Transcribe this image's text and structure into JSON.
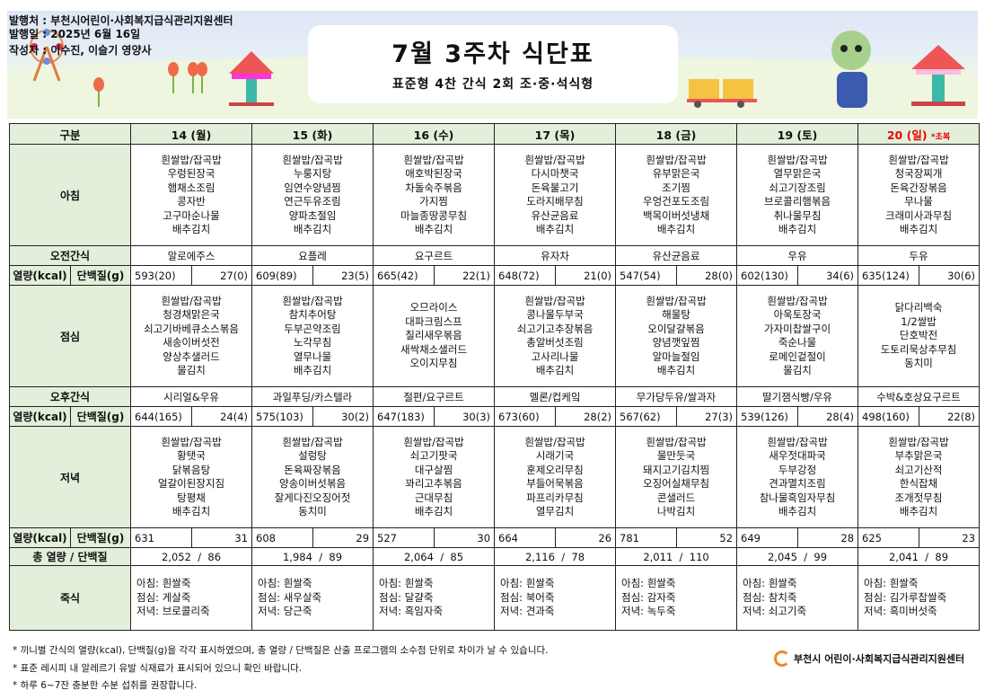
{
  "header": {
    "publisher": "발행처 : 부천시어린이·사회복지급식관리지원센터",
    "date": "발행일 : 2025년 6월 16일",
    "author": "작성자 : 이수진, 이슬기 영양사",
    "title": "7월 3주차 식단표",
    "subtitle": "표준형 4찬 간식 2회 조·중·석식형"
  },
  "labels": {
    "category": "구분",
    "breakfast": "아침",
    "am_snack": "오전간식",
    "kcal": "열량(kcal)",
    "protein": "단백질(g)",
    "lunch": "점심",
    "pm_snack": "오후간식",
    "dinner": "저녁",
    "total": "총 열량 / 단백질",
    "porridge": "죽식"
  },
  "days": [
    {
      "day": "14 (월)",
      "breakfast": [
        "흰쌀밥/잡곡밥",
        "우렁된장국",
        "햄채소조림",
        "콩자반",
        "고구마순나물",
        "배추김치"
      ],
      "am_snack": "알로에주스",
      "n1": [
        "593(20)",
        "27(0)"
      ],
      "lunch": [
        "흰쌀밥/잡곡밥",
        "청경채맑은국",
        "쇠고기바베큐소스볶음",
        "새송이버섯전",
        "양상추샐러드",
        "물김치"
      ],
      "pm_snack": "시리얼&우유",
      "n2": [
        "644(165)",
        "24(4)"
      ],
      "dinner": [
        "흰쌀밥/잡곡밥",
        "황탯국",
        "닭볶음탕",
        "얼갈이된장지짐",
        "탕평채",
        "배추김치"
      ],
      "n3": [
        "631",
        "31"
      ],
      "total": "2,052  /  86",
      "porridge": [
        "아침: 흰쌀죽",
        "점심: 게살죽",
        "저녁: 브로콜리죽"
      ]
    },
    {
      "day": "15 (화)",
      "breakfast": [
        "흰쌀밥/잡곡밥",
        "누룽지탕",
        "임연수양념찜",
        "연근두유조림",
        "양파초절임",
        "배추김치"
      ],
      "am_snack": "요플레",
      "n1": [
        "609(89)",
        "23(5)"
      ],
      "lunch": [
        "흰쌀밥/잡곡밥",
        "참치추어탕",
        "두부곤약조림",
        "노각무침",
        "열무나물",
        "배추김치"
      ],
      "pm_snack": "과일푸딩/카스텔라",
      "n2": [
        "575(103)",
        "30(2)"
      ],
      "dinner": [
        "흰쌀밥/잡곡밥",
        "설렁탕",
        "돈육짜장볶음",
        "양송이버섯볶음",
        "잘게다진오징어젓",
        "동치미"
      ],
      "n3": [
        "608",
        "29"
      ],
      "total": "1,984  /  89",
      "porridge": [
        "아침: 흰쌀죽",
        "점심: 새우살죽",
        "저녁: 당근죽"
      ]
    },
    {
      "day": "16 (수)",
      "breakfast": [
        "흰쌀밥/잡곡밥",
        "애호박된장국",
        "차돌숙주볶음",
        "가지찜",
        "마늘종땅콩무침",
        "배추김치"
      ],
      "am_snack": "요구르트",
      "n1": [
        "665(42)",
        "22(1)"
      ],
      "lunch": [
        "오므라이스",
        "대파크림스프",
        "칠리새우볶음",
        "새싹채소샐러드",
        "오이지무침"
      ],
      "pm_snack": "절편/요구르트",
      "n2": [
        "647(183)",
        "30(3)"
      ],
      "dinner": [
        "흰쌀밥/잡곡밥",
        "쇠고기팟국",
        "대구살찜",
        "꽈리고추볶음",
        "근대무침",
        "배추김치"
      ],
      "n3": [
        "527",
        "30"
      ],
      "total": "2,064  /  85",
      "porridge": [
        "아침: 흰쌀죽",
        "점심: 달걀죽",
        "저녁: 흑임자죽"
      ]
    },
    {
      "day": "17 (목)",
      "breakfast": [
        "흰쌀밥/잡곡밥",
        "다시마챗국",
        "돈육불고기",
        "도라지배무침",
        "유산균음료",
        "배추김치"
      ],
      "am_snack": "유자차",
      "n1": [
        "648(72)",
        "21(0)"
      ],
      "lunch": [
        "흰쌀밥/잡곡밥",
        "콩나물두부국",
        "쇠고기고추장볶음",
        "총알버섯조림",
        "고사리나물",
        "배추김치"
      ],
      "pm_snack": "멜론/컵케잌",
      "n2": [
        "673(60)",
        "28(2)"
      ],
      "dinner": [
        "흰쌀밥/잡곡밥",
        "시래기국",
        "훈제오리무침",
        "부들어묵볶음",
        "파프리카무침",
        "열무김치"
      ],
      "n3": [
        "664",
        "26"
      ],
      "total": "2,116  /  78",
      "porridge": [
        "아침: 흰쌀죽",
        "점심: 북어죽",
        "저녁: 견과죽"
      ]
    },
    {
      "day": "18 (금)",
      "breakfast": [
        "흰쌀밥/잡곡밥",
        "유부맑은국",
        "조기찜",
        "우엉건포도조림",
        "백목이버섯냉채",
        "배추김치"
      ],
      "am_snack": "유산균음료",
      "n1": [
        "547(54)",
        "28(0)"
      ],
      "lunch": [
        "흰쌀밥/잡곡밥",
        "해물탕",
        "오이달걀볶음",
        "양념깻잎찜",
        "알마늘절임",
        "배추김치"
      ],
      "pm_snack": "무가당두유/쌀과자",
      "n2": [
        "567(62)",
        "27(3)"
      ],
      "dinner": [
        "흰쌀밥/잡곡밥",
        "물만둣국",
        "돼지고기김치찜",
        "오징어실채무침",
        "콘샐러드",
        "나박김치"
      ],
      "n3": [
        "781",
        "52"
      ],
      "total": "2,011  /  110",
      "porridge": [
        "아침: 흰쌀죽",
        "점심: 감자죽",
        "저녁: 녹두죽"
      ]
    },
    {
      "day": "19 (토)",
      "breakfast": [
        "흰쌀밥/잡곡밥",
        "열무맑은국",
        "쇠고기장조림",
        "브로콜리햄볶음",
        "취나물무침",
        "배추김치"
      ],
      "am_snack": "우유",
      "n1": [
        "602(130)",
        "34(6)"
      ],
      "lunch": [
        "흰쌀밥/잡곡밥",
        "아욱토장국",
        "가자미찹쌀구이",
        "죽순나물",
        "로메인겉절이",
        "물김치"
      ],
      "pm_snack": "딸기잼식빵/우유",
      "n2": [
        "539(126)",
        "28(4)"
      ],
      "dinner": [
        "흰쌀밥/잡곡밥",
        "새우젓대파국",
        "두부강정",
        "견과멸치조림",
        "참나물흑임자무침",
        "배추김치"
      ],
      "n3": [
        "649",
        "28"
      ],
      "total": "2,045  /  99",
      "porridge": [
        "아침: 흰쌀죽",
        "점심: 참치죽",
        "저녁: 쇠고기죽"
      ]
    },
    {
      "day": "20 (일)",
      "note": "*초복",
      "holiday": true,
      "breakfast": [
        "흰쌀밥/잡곡밥",
        "청국장찌개",
        "돈육간장볶음",
        "무나물",
        "크래미사과무침",
        "배추김치"
      ],
      "am_snack": "두유",
      "n1": [
        "635(124)",
        "30(6)"
      ],
      "lunch": [
        "닭다리백숙",
        "1/2쌀밥",
        "단호박전",
        "도토리묵상추무침",
        "동치미"
      ],
      "pm_snack": "수박&호상요구르트",
      "n2": [
        "498(160)",
        "22(8)"
      ],
      "dinner": [
        "흰쌀밥/잡곡밥",
        "부추맑은국",
        "쇠고기산적",
        "한식잡채",
        "조개젓무침",
        "배추김치"
      ],
      "n3": [
        "625",
        "23"
      ],
      "total": "2,041  /  89",
      "porridge": [
        "아침: 흰쌀죽",
        "점심: 김가루찹쌀죽",
        "저녁: 흑미버섯죽"
      ]
    }
  ],
  "notes": [
    "* 끼니별 간식의 열량(kcal), 단백질(g)을 각각 표시하였으며, 총 열량 / 단백질은 산출 프로그램의 소수점 단위로 차이가 날 수 있습니다.",
    "* 표준 레시피 내 알레르기 유발 식재료가 표시되어 있으니 확인 바랍니다.",
    "* 하루 6~7잔 충분한 수분 섭취를 권장합니다."
  ],
  "footer_logo": "부천시 어린이·사회복지급식관리지원센터",
  "colors": {
    "label_bg": "#e2efda",
    "holiday": "#e00000",
    "logo": "#f08a1c"
  }
}
